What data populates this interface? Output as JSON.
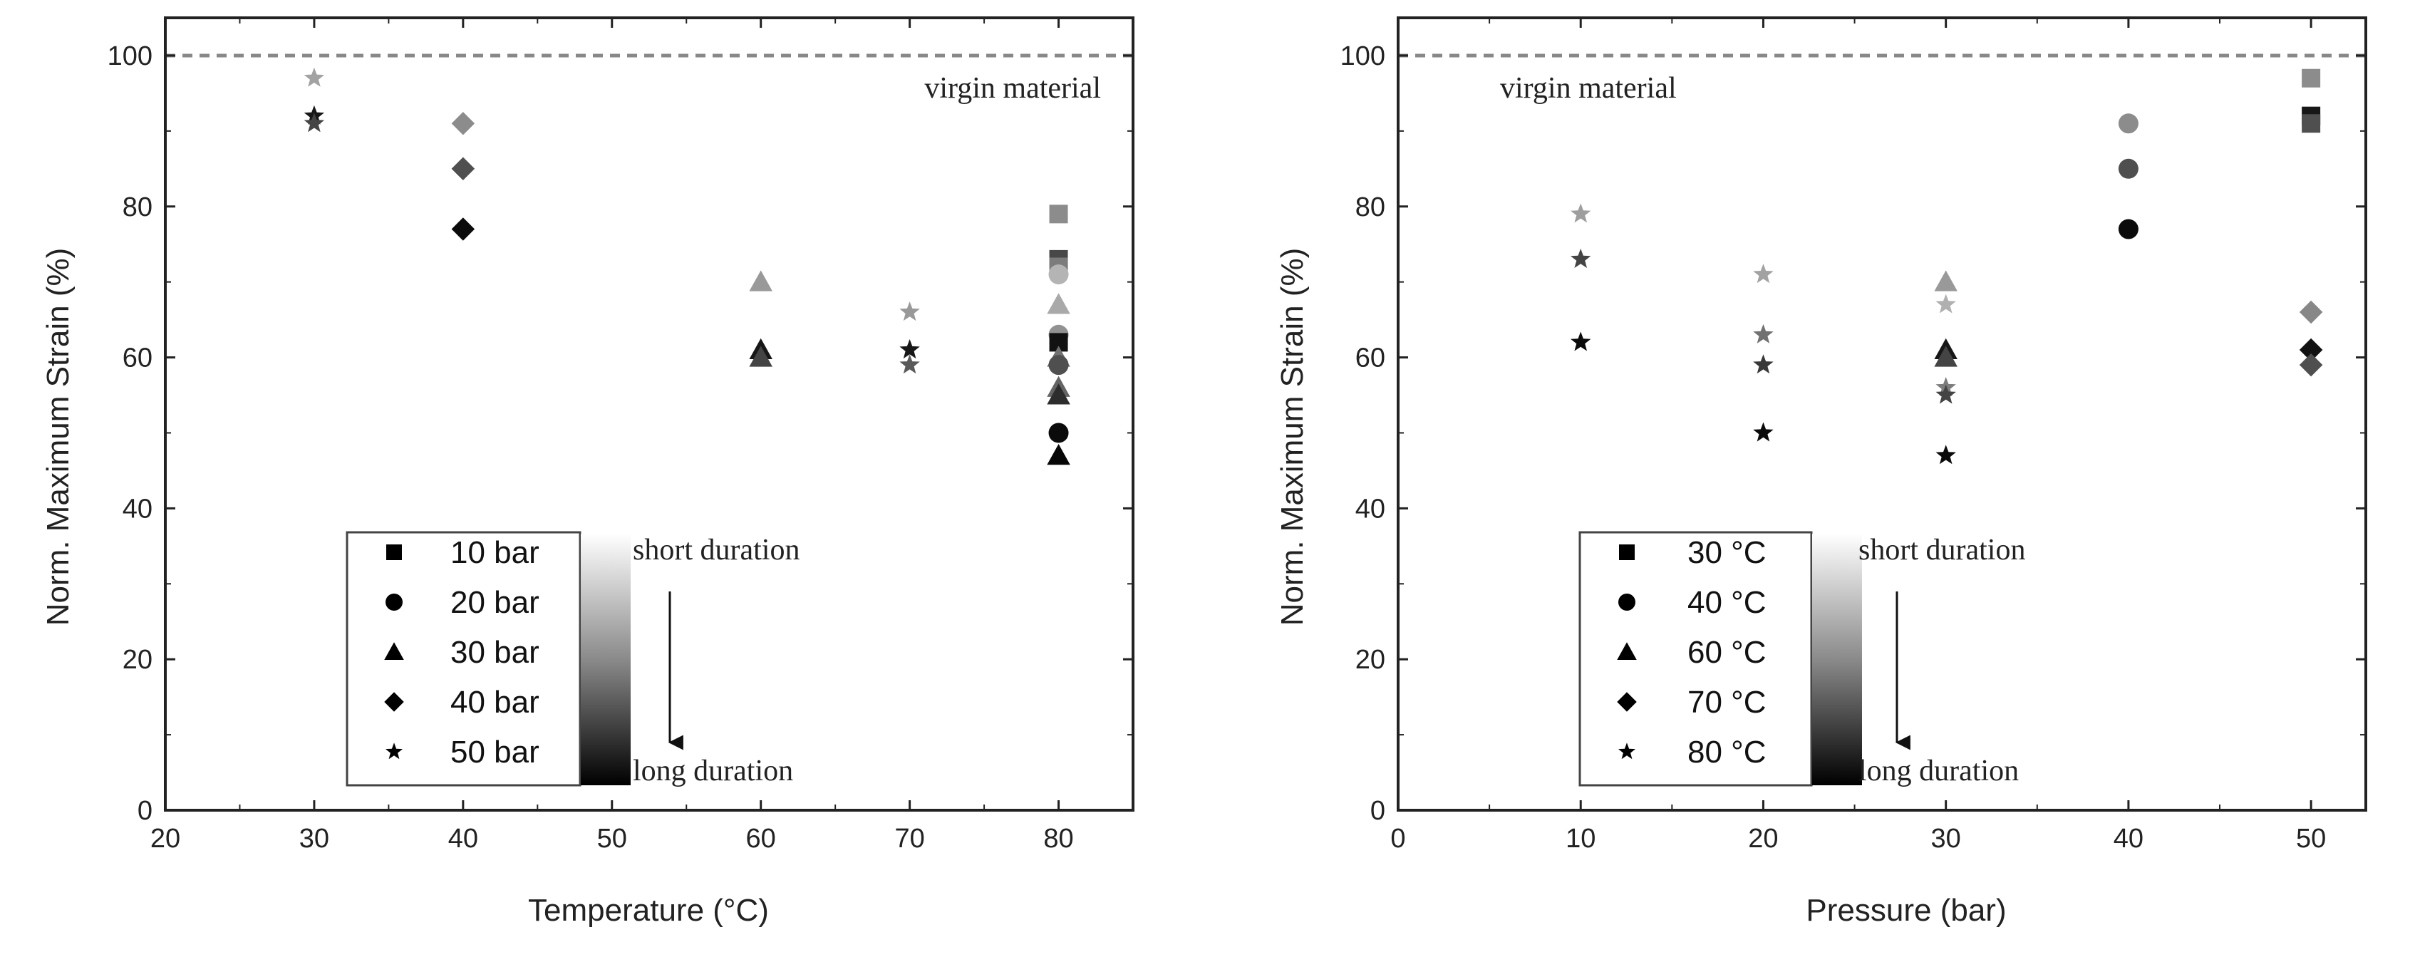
{
  "chart_data": [
    {
      "type": "scatter",
      "id": "left",
      "xlabel": "Temperature (°C)",
      "ylabel": "Norm. Maximum Strain (%)",
      "xlim": [
        20,
        85
      ],
      "ylim": [
        0,
        105
      ],
      "xticks": [
        20,
        30,
        40,
        50,
        60,
        70,
        80
      ],
      "yticks": [
        0,
        20,
        40,
        60,
        80,
        100
      ],
      "reference_line": {
        "y": 100,
        "label": "virgin material"
      },
      "legend": {
        "position": "bottom-center",
        "series": [
          {
            "label": "10 bar",
            "marker": "square"
          },
          {
            "label": "20 bar",
            "marker": "circle"
          },
          {
            "label": "30 bar",
            "marker": "triangle"
          },
          {
            "label": "40 bar",
            "marker": "diamond"
          },
          {
            "label": "50 bar",
            "marker": "star"
          }
        ],
        "gradient_top": "short duration",
        "gradient_bottom": "long duration"
      },
      "points": [
        {
          "x": 30,
          "y": 97,
          "marker": "star",
          "shade": 0.72
        },
        {
          "x": 30,
          "y": 92,
          "marker": "star",
          "shade": 0.1
        },
        {
          "x": 30,
          "y": 91,
          "marker": "star",
          "shade": 0.3
        },
        {
          "x": 40,
          "y": 91,
          "marker": "diamond",
          "shade": 0.62
        },
        {
          "x": 40,
          "y": 85,
          "marker": "diamond",
          "shade": 0.35
        },
        {
          "x": 40,
          "y": 77,
          "marker": "diamond",
          "shade": 0.05
        },
        {
          "x": 60,
          "y": 70,
          "marker": "triangle",
          "shade": 0.68
        },
        {
          "x": 60,
          "y": 61,
          "marker": "triangle",
          "shade": 0.1
        },
        {
          "x": 60,
          "y": 60,
          "marker": "triangle",
          "shade": 0.3
        },
        {
          "x": 70,
          "y": 66,
          "marker": "star",
          "shade": 0.68
        },
        {
          "x": 70,
          "y": 61,
          "marker": "star",
          "shade": 0.1
        },
        {
          "x": 70,
          "y": 59,
          "marker": "star",
          "shade": 0.4
        },
        {
          "x": 80,
          "y": 79,
          "marker": "square",
          "shade": 0.62
        },
        {
          "x": 80,
          "y": 73,
          "marker": "square",
          "shade": 0.32
        },
        {
          "x": 80,
          "y": 72,
          "marker": "square",
          "shade": 0.55
        },
        {
          "x": 80,
          "y": 71,
          "marker": "circle",
          "shade": 0.8
        },
        {
          "x": 80,
          "y": 67,
          "marker": "triangle",
          "shade": 0.75
        },
        {
          "x": 80,
          "y": 63,
          "marker": "circle",
          "shade": 0.65
        },
        {
          "x": 80,
          "y": 62,
          "marker": "square",
          "shade": 0.08
        },
        {
          "x": 80,
          "y": 60,
          "marker": "triangle",
          "shade": 0.5
        },
        {
          "x": 80,
          "y": 59,
          "marker": "circle",
          "shade": 0.35
        },
        {
          "x": 80,
          "y": 56,
          "marker": "triangle",
          "shade": 0.45
        },
        {
          "x": 80,
          "y": 55,
          "marker": "triangle",
          "shade": 0.2
        },
        {
          "x": 80,
          "y": 50,
          "marker": "circle",
          "shade": 0.05
        },
        {
          "x": 80,
          "y": 47,
          "marker": "triangle",
          "shade": 0.03
        }
      ]
    },
    {
      "type": "scatter",
      "id": "right",
      "xlabel": "Pressure (bar)",
      "ylabel": "Norm. Maximum Strain (%)",
      "xlim": [
        0,
        53
      ],
      "ylim": [
        0,
        105
      ],
      "xticks": [
        0,
        10,
        20,
        30,
        40,
        50
      ],
      "yticks": [
        0,
        20,
        40,
        60,
        80,
        100
      ],
      "reference_line": {
        "y": 100,
        "label": "virgin material"
      },
      "legend": {
        "position": "bottom-center",
        "series": [
          {
            "label": "30 °C",
            "marker": "square"
          },
          {
            "label": "40 °C",
            "marker": "circle"
          },
          {
            "label": "60 °C",
            "marker": "triangle"
          },
          {
            "label": "70 °C",
            "marker": "diamond"
          },
          {
            "label": "80 °C",
            "marker": "star"
          }
        ],
        "gradient_top": "short duration",
        "gradient_bottom": "long duration"
      },
      "points": [
        {
          "x": 10,
          "y": 79,
          "marker": "star",
          "shade": 0.7
        },
        {
          "x": 10,
          "y": 73,
          "marker": "star",
          "shade": 0.3
        },
        {
          "x": 10,
          "y": 62,
          "marker": "star",
          "shade": 0.05
        },
        {
          "x": 20,
          "y": 71,
          "marker": "star",
          "shade": 0.72
        },
        {
          "x": 20,
          "y": 63,
          "marker": "star",
          "shade": 0.5
        },
        {
          "x": 20,
          "y": 59,
          "marker": "star",
          "shade": 0.25
        },
        {
          "x": 20,
          "y": 50,
          "marker": "star",
          "shade": 0.05
        },
        {
          "x": 30,
          "y": 70,
          "marker": "triangle",
          "shade": 0.68
        },
        {
          "x": 30,
          "y": 67,
          "marker": "star",
          "shade": 0.78
        },
        {
          "x": 30,
          "y": 61,
          "marker": "triangle",
          "shade": 0.1
        },
        {
          "x": 30,
          "y": 60,
          "marker": "triangle",
          "shade": 0.3
        },
        {
          "x": 30,
          "y": 56,
          "marker": "star",
          "shade": 0.55
        },
        {
          "x": 30,
          "y": 55,
          "marker": "star",
          "shade": 0.3
        },
        {
          "x": 30,
          "y": 47,
          "marker": "star",
          "shade": 0.05
        },
        {
          "x": 40,
          "y": 91,
          "marker": "circle",
          "shade": 0.62
        },
        {
          "x": 40,
          "y": 85,
          "marker": "circle",
          "shade": 0.35
        },
        {
          "x": 40,
          "y": 77,
          "marker": "circle",
          "shade": 0.05
        },
        {
          "x": 50,
          "y": 97,
          "marker": "square",
          "shade": 0.62
        },
        {
          "x": 50,
          "y": 92,
          "marker": "square",
          "shade": 0.1
        },
        {
          "x": 50,
          "y": 91,
          "marker": "square",
          "shade": 0.35
        },
        {
          "x": 50,
          "y": 66,
          "marker": "diamond",
          "shade": 0.6
        },
        {
          "x": 50,
          "y": 61,
          "marker": "diamond",
          "shade": 0.08
        },
        {
          "x": 50,
          "y": 59,
          "marker": "diamond",
          "shade": 0.35
        }
      ]
    }
  ]
}
